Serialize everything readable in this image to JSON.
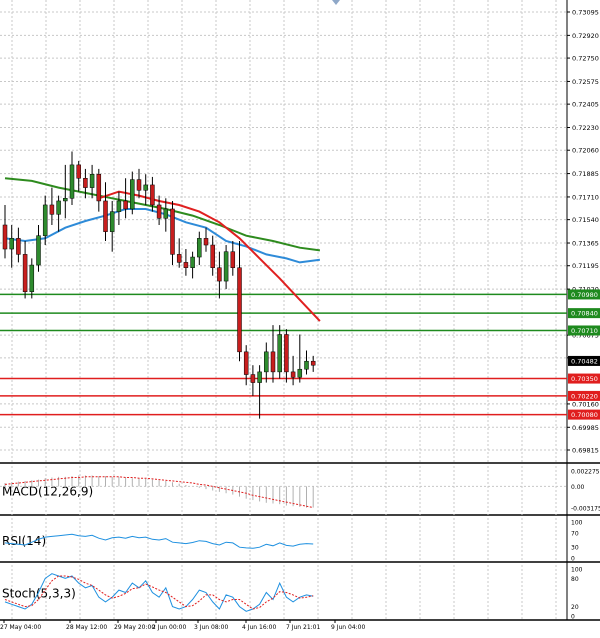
{
  "chart_data": {
    "type": "candlestick",
    "price_axis": {
      "range": [
        0.69815,
        0.73095
      ],
      "ticks": [
        "0.73095",
        "0.72920",
        "0.72750",
        "0.72575",
        "0.72405",
        "0.72230",
        "0.72060",
        "0.71885",
        "0.71710",
        "0.71540",
        "0.71365",
        "0.71195",
        "0.71020",
        "0.70675",
        "0.70505",
        "0.70160",
        "0.69985",
        "0.69815"
      ]
    },
    "time_axis": {
      "labels": [
        "27 May 04:00",
        "28 May 12:00",
        "29 May 20:00",
        "2 Jun 00:00",
        "3 Jun 08:00",
        "4 Jun 16:00",
        "7 Jun 21:01",
        "9 Jun 04:00"
      ]
    },
    "candles": [
      {
        "o": 0.715,
        "h": 0.7165,
        "l": 0.7125,
        "c": 0.7132
      },
      {
        "o": 0.7132,
        "h": 0.715,
        "l": 0.7118,
        "c": 0.714
      },
      {
        "o": 0.714,
        "h": 0.7148,
        "l": 0.7122,
        "c": 0.7128
      },
      {
        "o": 0.7128,
        "h": 0.7138,
        "l": 0.7095,
        "c": 0.71
      },
      {
        "o": 0.71,
        "h": 0.7125,
        "l": 0.7095,
        "c": 0.712
      },
      {
        "o": 0.712,
        "h": 0.715,
        "l": 0.7115,
        "c": 0.7142
      },
      {
        "o": 0.7142,
        "h": 0.7172,
        "l": 0.7135,
        "c": 0.7165
      },
      {
        "o": 0.7165,
        "h": 0.7178,
        "l": 0.715,
        "c": 0.7158
      },
      {
        "o": 0.7158,
        "h": 0.7172,
        "l": 0.7145,
        "c": 0.7168
      },
      {
        "o": 0.7168,
        "h": 0.7195,
        "l": 0.7155,
        "c": 0.717
      },
      {
        "o": 0.717,
        "h": 0.7205,
        "l": 0.7165,
        "c": 0.7195
      },
      {
        "o": 0.7195,
        "h": 0.7198,
        "l": 0.7175,
        "c": 0.7185
      },
      {
        "o": 0.7185,
        "h": 0.7192,
        "l": 0.717,
        "c": 0.7178
      },
      {
        "o": 0.7178,
        "h": 0.7195,
        "l": 0.717,
        "c": 0.7188
      },
      {
        "o": 0.7188,
        "h": 0.7192,
        "l": 0.716,
        "c": 0.7168
      },
      {
        "o": 0.7168,
        "h": 0.7182,
        "l": 0.7138,
        "c": 0.7145
      },
      {
        "o": 0.7145,
        "h": 0.7168,
        "l": 0.713,
        "c": 0.716
      },
      {
        "o": 0.716,
        "h": 0.7175,
        "l": 0.715,
        "c": 0.7168
      },
      {
        "o": 0.7168,
        "h": 0.7185,
        "l": 0.7155,
        "c": 0.7162
      },
      {
        "o": 0.7162,
        "h": 0.719,
        "l": 0.7158,
        "c": 0.7184
      },
      {
        "o": 0.7184,
        "h": 0.7192,
        "l": 0.717,
        "c": 0.7176
      },
      {
        "o": 0.7176,
        "h": 0.7188,
        "l": 0.7165,
        "c": 0.718
      },
      {
        "o": 0.718,
        "h": 0.7186,
        "l": 0.716,
        "c": 0.7165
      },
      {
        "o": 0.7165,
        "h": 0.7172,
        "l": 0.715,
        "c": 0.7155
      },
      {
        "o": 0.7155,
        "h": 0.717,
        "l": 0.7145,
        "c": 0.7162
      },
      {
        "o": 0.7162,
        "h": 0.7168,
        "l": 0.712,
        "c": 0.7128
      },
      {
        "o": 0.7128,
        "h": 0.714,
        "l": 0.7118,
        "c": 0.7122
      },
      {
        "o": 0.7122,
        "h": 0.7132,
        "l": 0.7112,
        "c": 0.7118
      },
      {
        "o": 0.7118,
        "h": 0.713,
        "l": 0.711,
        "c": 0.7126
      },
      {
        "o": 0.7126,
        "h": 0.7145,
        "l": 0.712,
        "c": 0.714
      },
      {
        "o": 0.714,
        "h": 0.7148,
        "l": 0.713,
        "c": 0.7135
      },
      {
        "o": 0.7135,
        "h": 0.7142,
        "l": 0.7112,
        "c": 0.7118
      },
      {
        "o": 0.7118,
        "h": 0.713,
        "l": 0.7095,
        "c": 0.7108
      },
      {
        "o": 0.7108,
        "h": 0.7135,
        "l": 0.7102,
        "c": 0.713
      },
      {
        "o": 0.713,
        "h": 0.7138,
        "l": 0.7112,
        "c": 0.7118
      },
      {
        "o": 0.7118,
        "h": 0.7138,
        "l": 0.7048,
        "c": 0.7055
      },
      {
        "o": 0.7055,
        "h": 0.706,
        "l": 0.703,
        "c": 0.7038
      },
      {
        "o": 0.7038,
        "h": 0.7045,
        "l": 0.7022,
        "c": 0.7032
      },
      {
        "o": 0.7032,
        "h": 0.7045,
        "l": 0.7005,
        "c": 0.704
      },
      {
        "o": 0.704,
        "h": 0.7062,
        "l": 0.7032,
        "c": 0.7055
      },
      {
        "o": 0.7055,
        "h": 0.7075,
        "l": 0.7032,
        "c": 0.704
      },
      {
        "o": 0.704,
        "h": 0.7075,
        "l": 0.7035,
        "c": 0.7068
      },
      {
        "o": 0.7068,
        "h": 0.7072,
        "l": 0.7032,
        "c": 0.704
      },
      {
        "o": 0.704,
        "h": 0.7052,
        "l": 0.703,
        "c": 0.7036
      },
      {
        "o": 0.7036,
        "h": 0.7068,
        "l": 0.7032,
        "c": 0.7042
      },
      {
        "o": 0.7042,
        "h": 0.7056,
        "l": 0.7038,
        "c": 0.7048
      },
      {
        "o": 0.7048,
        "h": 0.7052,
        "l": 0.704,
        "c": 0.7045
      }
    ],
    "moving_averages": [
      {
        "color": "#2e8b1e",
        "values": [
          [
            0,
            0.7185
          ],
          [
            4,
            0.7183
          ],
          [
            8,
            0.7178
          ],
          [
            12,
            0.7174
          ],
          [
            16,
            0.717
          ],
          [
            20,
            0.7166
          ],
          [
            24,
            0.7162
          ],
          [
            28,
            0.7157
          ],
          [
            32,
            0.715
          ],
          [
            36,
            0.7142
          ],
          [
            40,
            0.7138
          ],
          [
            44,
            0.7133
          ],
          [
            47,
            0.7131
          ]
        ]
      },
      {
        "color": "#2e8bd8",
        "values": [
          [
            0,
            0.714
          ],
          [
            3,
            0.7138
          ],
          [
            6,
            0.714
          ],
          [
            9,
            0.7148
          ],
          [
            12,
            0.7153
          ],
          [
            15,
            0.7157
          ],
          [
            18,
            0.7162
          ],
          [
            21,
            0.7162
          ],
          [
            24,
            0.7158
          ],
          [
            27,
            0.7152
          ],
          [
            30,
            0.7148
          ],
          [
            33,
            0.7138
          ],
          [
            36,
            0.7134
          ],
          [
            39,
            0.7128
          ],
          [
            42,
            0.7125
          ],
          [
            44,
            0.7122
          ],
          [
            47,
            0.7124
          ]
        ]
      },
      {
        "color": "#e02020",
        "start": 14,
        "values": [
          [
            14,
            0.717
          ],
          [
            17,
            0.7175
          ],
          [
            20,
            0.7172
          ],
          [
            23,
            0.7168
          ],
          [
            26,
            0.7165
          ],
          [
            29,
            0.716
          ],
          [
            32,
            0.7152
          ],
          [
            35,
            0.714
          ],
          [
            38,
            0.7125
          ],
          [
            41,
            0.711
          ],
          [
            44,
            0.7094
          ],
          [
            47,
            0.7078
          ]
        ]
      }
    ],
    "resistance_lines": {
      "color": "#1e8a1e",
      "levels": [
        "0.70980",
        "0.70840",
        "0.70710"
      ]
    },
    "support_lines": {
      "color": "#e01e1e",
      "levels": [
        "0.70350",
        "0.70220",
        "0.70080"
      ]
    },
    "current_price": "0.70482",
    "macd": {
      "label": "MACD(12,26,9)",
      "axis_ticks": [
        "0.002275",
        "0.00",
        "-0.003175"
      ],
      "range": [
        -0.0036,
        0.0024
      ],
      "histogram": [
        0.0005,
        0.0006,
        0.0007,
        0.0008,
        0.0009,
        0.001,
        0.0012,
        0.0013,
        0.0014,
        0.0014,
        0.0015,
        0.0016,
        0.0016,
        0.0016,
        0.0015,
        0.0015,
        0.0014,
        0.0014,
        0.0013,
        0.0012,
        0.0012,
        0.0011,
        0.001,
        0.0009,
        0.0008,
        0.0006,
        0.0004,
        0.0002,
        0.0,
        -0.0002,
        -0.0004,
        -0.0006,
        -0.0008,
        -0.001,
        -0.0012,
        -0.0015,
        -0.0018,
        -0.002,
        -0.0022,
        -0.0024,
        -0.0025,
        -0.0026,
        -0.0028,
        -0.0029,
        -0.003,
        -0.0031,
        -0.0031
      ],
      "signal": [
        0.0003,
        0.0004,
        0.0005,
        0.0006,
        0.0007,
        0.0008,
        0.0009,
        0.001,
        0.0011,
        0.0012,
        0.0013,
        0.0013,
        0.0014,
        0.0014,
        0.0014,
        0.0014,
        0.0014,
        0.0014,
        0.0013,
        0.0013,
        0.0012,
        0.0012,
        0.0011,
        0.001,
        0.0009,
        0.0008,
        0.0007,
        0.0006,
        0.0005,
        0.0003,
        0.0002,
        0.0,
        -0.0002,
        -0.0004,
        -0.0006,
        -0.0008,
        -0.001,
        -0.0013,
        -0.0015,
        -0.0017,
        -0.0019,
        -0.0021,
        -0.0023,
        -0.0025,
        -0.0027,
        -0.0029,
        -0.0031
      ]
    },
    "rsi": {
      "label": "RSI(14)",
      "axis_ticks": [
        "100",
        "70",
        "30",
        "0"
      ],
      "range": [
        0,
        100
      ],
      "values": [
        42,
        40,
        38,
        36,
        44,
        52,
        58,
        60,
        62,
        64,
        66,
        62,
        60,
        63,
        55,
        50,
        56,
        58,
        55,
        60,
        56,
        58,
        52,
        50,
        54,
        44,
        42,
        40,
        43,
        48,
        46,
        40,
        36,
        44,
        42,
        30,
        28,
        27,
        30,
        38,
        34,
        42,
        35,
        33,
        38,
        40,
        39
      ]
    },
    "stoch": {
      "label": "Stoch(5,3,3)",
      "axis_ticks": [
        "100",
        "80",
        "20",
        "0"
      ],
      "range": [
        0,
        100
      ],
      "k": [
        30,
        25,
        20,
        15,
        25,
        50,
        80,
        90,
        85,
        80,
        85,
        70,
        60,
        65,
        40,
        30,
        40,
        55,
        50,
        70,
        60,
        75,
        50,
        40,
        60,
        20,
        15,
        20,
        35,
        55,
        50,
        30,
        15,
        45,
        40,
        20,
        10,
        15,
        25,
        50,
        35,
        70,
        40,
        30,
        40,
        45,
        42
      ],
      "d": [
        35,
        30,
        25,
        20,
        22,
        35,
        55,
        75,
        85,
        85,
        83,
        78,
        70,
        65,
        55,
        45,
        38,
        42,
        48,
        58,
        60,
        68,
        62,
        55,
        50,
        40,
        30,
        20,
        22,
        32,
        45,
        45,
        35,
        30,
        35,
        35,
        25,
        15,
        18,
        30,
        38,
        52,
        50,
        45,
        38,
        40,
        43
      ]
    },
    "colors": {
      "bull_candle": "#2e8b2e",
      "bear_candle": "#c81e1e",
      "grid": "#c8c8c8",
      "axis_text": "#000000"
    }
  }
}
